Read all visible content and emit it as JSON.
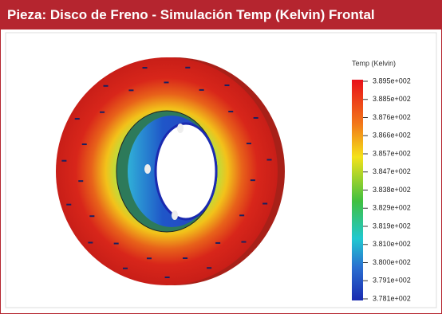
{
  "header": {
    "title": "Pieza: Disco de Freno - Simulación Temp (Kelvin) Frontal"
  },
  "legend": {
    "title": "Temp (Kelvin)",
    "labels": [
      "3.895e+002",
      "3.885e+002",
      "3.876e+002",
      "3.866e+002",
      "3.857e+002",
      "3.847e+002",
      "3.838e+002",
      "3.829e+002",
      "3.819e+002",
      "3.810e+002",
      "3.800e+002",
      "3.791e+002",
      "3.781e+002"
    ]
  }
}
